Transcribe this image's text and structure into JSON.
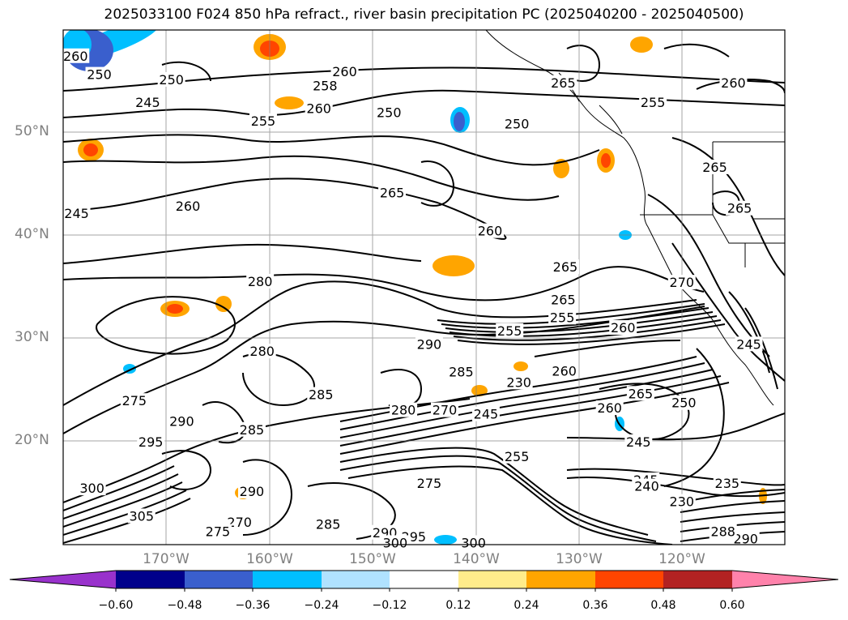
{
  "title": "2025033100 F024 850 hPa refract., river basin precipitation PC (2025040200 - 2025040500)",
  "map": {
    "lat_labels": [
      "50°N",
      "40°N",
      "30°N",
      "20°N"
    ],
    "lon_labels": [
      "170°W",
      "160°W",
      "150°W",
      "140°W",
      "130°W",
      "120°W"
    ],
    "contour_labels": [
      {
        "text": "260",
        "lon": -178.8,
        "lat": 57.5
      },
      {
        "text": "250",
        "lon": -176.5,
        "lat": 55.7
      },
      {
        "text": "250",
        "lon": -169.5,
        "lat": 55.2
      },
      {
        "text": "245",
        "lon": -171.8,
        "lat": 53.0
      },
      {
        "text": "260",
        "lon": -152.7,
        "lat": 56.0
      },
      {
        "text": "258",
        "lon": -154.6,
        "lat": 54.6
      },
      {
        "text": "260",
        "lon": -155.2,
        "lat": 52.4
      },
      {
        "text": "250",
        "lon": -148.4,
        "lat": 52.0
      },
      {
        "text": "255",
        "lon": -160.6,
        "lat": 51.2
      },
      {
        "text": "250",
        "lon": -136.0,
        "lat": 50.9
      },
      {
        "text": "265",
        "lon": -131.5,
        "lat": 54.9
      },
      {
        "text": "260",
        "lon": -115.0,
        "lat": 54.9
      },
      {
        "text": "255",
        "lon": -122.8,
        "lat": 53.0
      },
      {
        "text": "265",
        "lon": -116.8,
        "lat": 46.7
      },
      {
        "text": "265",
        "lon": -114.4,
        "lat": 42.7
      },
      {
        "text": "265",
        "lon": -148.1,
        "lat": 44.2
      },
      {
        "text": "260",
        "lon": -167.9,
        "lat": 42.9
      },
      {
        "text": "245",
        "lon": -178.7,
        "lat": 42.2
      },
      {
        "text": "260",
        "lon": -138.6,
        "lat": 40.5
      },
      {
        "text": "265",
        "lon": -131.3,
        "lat": 37.0
      },
      {
        "text": "280",
        "lon": -160.9,
        "lat": 35.6
      },
      {
        "text": "270",
        "lon": -120.0,
        "lat": 35.5
      },
      {
        "text": "265",
        "lon": -131.5,
        "lat": 33.8
      },
      {
        "text": "255",
        "lon": -131.6,
        "lat": 32.1
      },
      {
        "text": "255",
        "lon": -136.7,
        "lat": 30.8
      },
      {
        "text": "260",
        "lon": -125.7,
        "lat": 31.1
      },
      {
        "text": "245",
        "lon": -113.5,
        "lat": 29.5
      },
      {
        "text": "290",
        "lon": -144.5,
        "lat": 29.5
      },
      {
        "text": "280",
        "lon": -160.7,
        "lat": 28.8
      },
      {
        "text": "285",
        "lon": -141.4,
        "lat": 26.8
      },
      {
        "text": "260",
        "lon": -131.4,
        "lat": 26.9
      },
      {
        "text": "230",
        "lon": -135.8,
        "lat": 25.8
      },
      {
        "text": "285",
        "lon": -155.0,
        "lat": 24.6
      },
      {
        "text": "265",
        "lon": -124.0,
        "lat": 24.7
      },
      {
        "text": "275",
        "lon": -173.1,
        "lat": 24.0
      },
      {
        "text": "260",
        "lon": -127.0,
        "lat": 23.3
      },
      {
        "text": "280",
        "lon": -147.0,
        "lat": 23.1
      },
      {
        "text": "270",
        "lon": -143.0,
        "lat": 23.1
      },
      {
        "text": "245",
        "lon": -139.0,
        "lat": 22.7
      },
      {
        "text": "250",
        "lon": -119.8,
        "lat": 23.8
      },
      {
        "text": "290",
        "lon": -168.5,
        "lat": 22.0
      },
      {
        "text": "285",
        "lon": -161.7,
        "lat": 21.2
      },
      {
        "text": "295",
        "lon": -171.5,
        "lat": 20.0
      },
      {
        "text": "245",
        "lon": -124.2,
        "lat": 20.0
      },
      {
        "text": "255",
        "lon": -136.0,
        "lat": 18.6
      },
      {
        "text": "275",
        "lon": -144.5,
        "lat": 16.0
      },
      {
        "text": "245",
        "lon": -123.5,
        "lat": 16.3
      },
      {
        "text": "240",
        "lon": -123.4,
        "lat": 15.7
      },
      {
        "text": "235",
        "lon": -115.6,
        "lat": 16.0
      },
      {
        "text": "230",
        "lon": -120.0,
        "lat": 14.2
      },
      {
        "text": "300",
        "lon": -177.2,
        "lat": 15.5
      },
      {
        "text": "305",
        "lon": -172.4,
        "lat": 12.8
      },
      {
        "text": "290",
        "lon": -161.7,
        "lat": 15.2
      },
      {
        "text": "270",
        "lon": -162.9,
        "lat": 12.2
      },
      {
        "text": "275",
        "lon": -165.0,
        "lat": 11.3
      },
      {
        "text": "285",
        "lon": -154.3,
        "lat": 12.0
      },
      {
        "text": "290",
        "lon": -148.8,
        "lat": 11.2
      },
      {
        "text": "295",
        "lon": -146.0,
        "lat": 10.8
      },
      {
        "text": "300",
        "lon": -147.8,
        "lat": 10.2
      },
      {
        "text": "300",
        "lon": -140.2,
        "lat": 10.2
      },
      {
        "text": "290",
        "lon": -113.8,
        "lat": 10.6
      },
      {
        "text": "288",
        "lon": -116.0,
        "lat": 11.3
      }
    ]
  },
  "colorbar": {
    "tick_labels": [
      "−0.60",
      "−0.48",
      "−0.36",
      "−0.24",
      "−0.12",
      "0.12",
      "0.24",
      "0.36",
      "0.48",
      "0.60"
    ],
    "colors": [
      "#9932cc",
      "#00008b",
      "#3a5fcd",
      "#00bfff",
      "#b0e2ff",
      "#ffffff",
      "#ffec8b",
      "#ffa500",
      "#ff4500",
      "#b22222",
      "#ff82ab"
    ]
  }
}
